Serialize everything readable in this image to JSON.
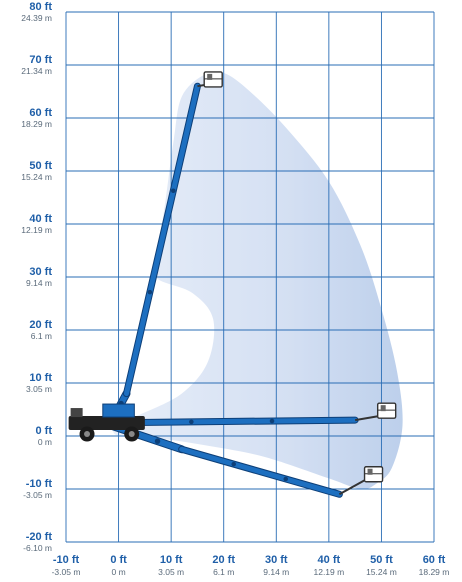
{
  "colors": {
    "grid": "#2a6db5",
    "label_ft": "#1f5fa8",
    "label_m": "#5a6a7a",
    "envelope_light": "#d7e3f5",
    "envelope_dark": "#b7cbea",
    "boom": "#1d6fc0",
    "boom_edge": "#0d3f78",
    "chassis": "#222222"
  },
  "chart_data": {
    "type": "diagram",
    "title": "",
    "x_axis": {
      "range": [
        -10,
        60
      ],
      "ticks": [
        {
          "ft": "-10 ft",
          "m": "-3.05 m"
        },
        {
          "ft": "0 ft",
          "m": "0 m"
        },
        {
          "ft": "10 ft",
          "m": "3.05 m"
        },
        {
          "ft": "20 ft",
          "m": "6.1 m"
        },
        {
          "ft": "30 ft",
          "m": "9.14 m"
        },
        {
          "ft": "40 ft",
          "m": "12.19 m"
        },
        {
          "ft": "50 ft",
          "m": "15.24 m"
        },
        {
          "ft": "60 ft",
          "m": "18.29 m"
        }
      ]
    },
    "y_axis": {
      "range": [
        -20,
        80
      ],
      "ticks": [
        {
          "ft": "80 ft",
          "m": "24.39 m"
        },
        {
          "ft": "70 ft",
          "m": "21.34 m"
        },
        {
          "ft": "60 ft",
          "m": "18.29 m"
        },
        {
          "ft": "50 ft",
          "m": "15.24 m"
        },
        {
          "ft": "40 ft",
          "m": "12.19 m"
        },
        {
          "ft": "30 ft",
          "m": "9.14 m"
        },
        {
          "ft": "20 ft",
          "m": "6.1 m"
        },
        {
          "ft": "10 ft",
          "m": "3.05 m"
        },
        {
          "ft": "0 ft",
          "m": "0 m"
        },
        {
          "ft": "-10 ft",
          "m": "-3.05 m"
        },
        {
          "ft": "-20 ft",
          "m": "-6.10 m"
        }
      ]
    },
    "grid": true,
    "envelope": [
      [
        12,
        64
      ],
      [
        16,
        68
      ],
      [
        20,
        68.5
      ],
      [
        25,
        65
      ],
      [
        32,
        58
      ],
      [
        40,
        48
      ],
      [
        46,
        36
      ],
      [
        50,
        24
      ],
      [
        53,
        12
      ],
      [
        54,
        2
      ],
      [
        52,
        -6
      ],
      [
        49,
        -9
      ],
      [
        46,
        -10
      ],
      [
        40,
        -8
      ],
      [
        28,
        -4
      ],
      [
        18,
        -2
      ],
      [
        8,
        -0.5
      ],
      [
        0,
        0
      ],
      [
        -0.5,
        2
      ],
      [
        4,
        4
      ],
      [
        12,
        8
      ],
      [
        17,
        14
      ],
      [
        18,
        22
      ],
      [
        14,
        27
      ],
      [
        7,
        30
      ],
      [
        7.5,
        35
      ],
      [
        9,
        45
      ],
      [
        10.5,
        56
      ]
    ],
    "booms": [
      {
        "position": "full-up",
        "pivot": [
          -1.5,
          2.5
        ],
        "knee": [
          1.5,
          8
        ],
        "tip": [
          15,
          66
        ],
        "platform": [
          18,
          67
        ]
      },
      {
        "position": "horizontal",
        "pivot": [
          -1.5,
          2.5
        ],
        "tip": [
          45,
          3
        ],
        "platform": [
          51,
          4.5
        ]
      },
      {
        "position": "below-grade",
        "pivot": [
          -1.5,
          2
        ],
        "knee": [
          12,
          -2.5
        ],
        "tip": [
          42,
          -11
        ],
        "platform": [
          48.5,
          -7.5
        ]
      }
    ]
  }
}
